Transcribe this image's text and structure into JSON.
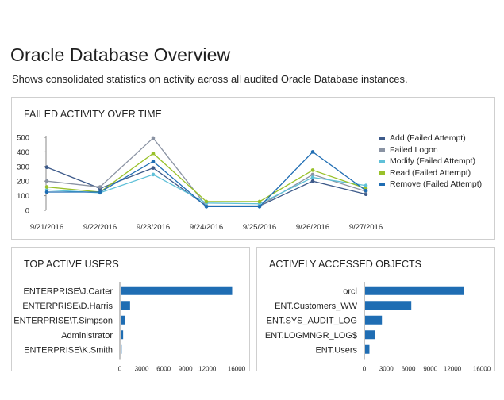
{
  "page": {
    "title": "Oracle Database Overview",
    "subtitle": "Shows consolidated statistics on activity across all audited Oracle Database instances."
  },
  "panels": {
    "failed_activity": {
      "title": "FAILED ACTIVITY OVER TIME"
    },
    "top_users": {
      "title": "TOP ACTIVE USERS"
    },
    "accessed_objects": {
      "title": "ACTIVELY ACCESSED OBJECTS"
    }
  },
  "chart_data": [
    {
      "type": "line",
      "title": "FAILED ACTIVITY OVER TIME",
      "x": [
        "9/21/2016",
        "9/22/2016",
        "9/23/2016",
        "9/24/2016",
        "9/25/2016",
        "9/26/2016",
        "9/27/2016"
      ],
      "ylim": [
        0,
        500
      ],
      "yticks": [
        0,
        100,
        200,
        300,
        400,
        500
      ],
      "grid": false,
      "legend": "right",
      "series": [
        {
          "name": "Add (Failed Attempt)",
          "color": "#3d5a8a",
          "values": [
            295,
            150,
            290,
            30,
            30,
            200,
            110
          ]
        },
        {
          "name": "Failed Logon",
          "color": "#8a93a3",
          "values": [
            200,
            160,
            495,
            30,
            30,
            245,
            130
          ]
        },
        {
          "name": "Modify (Failed Attempt)",
          "color": "#5fc0d8",
          "values": [
            140,
            120,
            245,
            50,
            45,
            225,
            170
          ]
        },
        {
          "name": "Read (Failed Attempt)",
          "color": "#99c12a",
          "values": [
            160,
            125,
            390,
            60,
            60,
            275,
            150
          ]
        },
        {
          "name": "Remove (Failed Attempt)",
          "color": "#1f6db3",
          "values": [
            125,
            125,
            335,
            25,
            25,
            400,
            135
          ]
        }
      ]
    },
    {
      "type": "bar",
      "orientation": "horizontal",
      "title": "TOP ACTIVE USERS",
      "categories": [
        "ENTERPRISE\\J.Carter",
        "ENTERPRISE\\D.Harris",
        "ENTERPRISE\\T.Simpson",
        "Administrator",
        "ENTERPRISE\\K.Smith"
      ],
      "values": [
        15400,
        1400,
        700,
        450,
        250
      ],
      "xlim": [
        0,
        16000
      ],
      "xticks": [
        0,
        3000,
        6000,
        9000,
        12000,
        16000
      ],
      "color": "#1f6db3"
    },
    {
      "type": "bar",
      "orientation": "horizontal",
      "title": "ACTIVELY ACCESSED OBJECTS",
      "categories": [
        "orcl",
        "ENT.Customers_WW",
        "ENT.SYS_AUDIT_LOG",
        "ENT.LOGMNGR_LOG$",
        "ENT.Users"
      ],
      "values": [
        13600,
        6400,
        2400,
        1500,
        700
      ],
      "xlim": [
        0,
        16000
      ],
      "xticks": [
        0,
        3000,
        6000,
        9000,
        12000,
        16000
      ],
      "color": "#1f6db3"
    }
  ]
}
